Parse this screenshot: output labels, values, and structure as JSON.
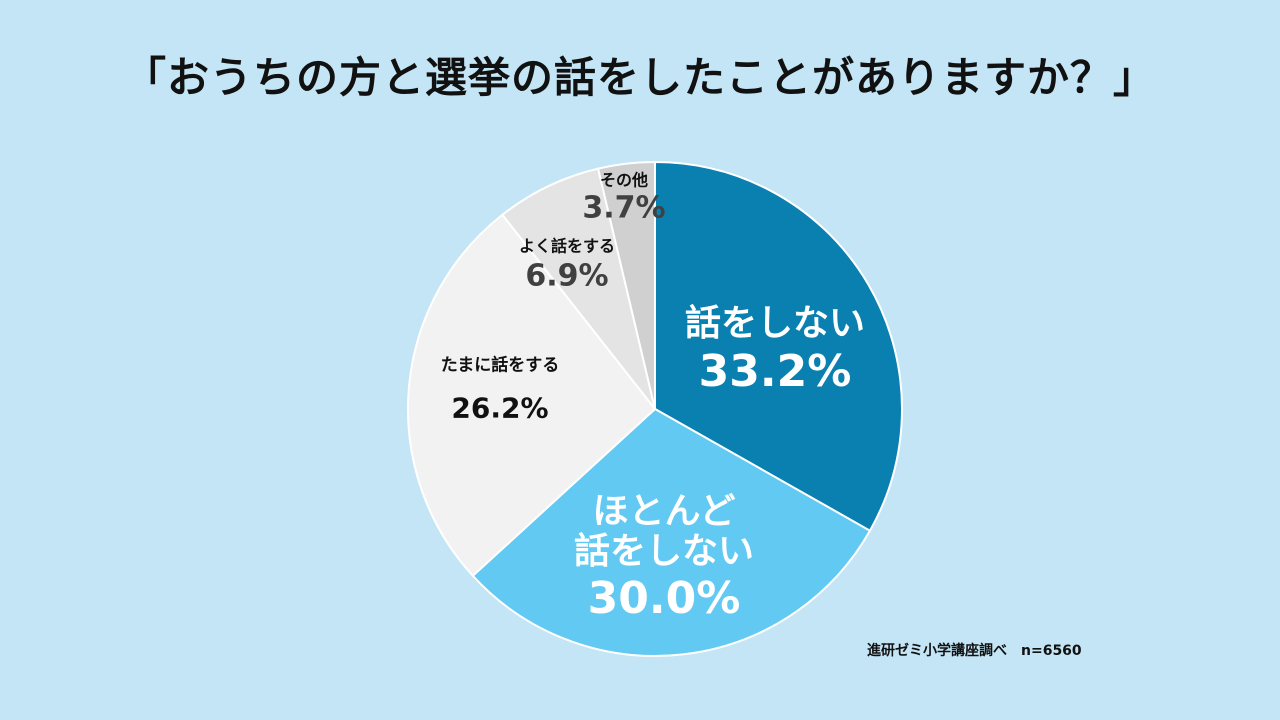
{
  "title": "「おうちの方と選挙の話をしたことがありますか？」",
  "source": "進研ゼミ小学講座調べ　n=6560",
  "chart_data": {
    "type": "pie",
    "title": "「おうちの方と選挙の話をしたことがありますか？」",
    "categories": [
      "話をしない",
      "ほとんど話をしない",
      "たまに話をする",
      "よく話をする",
      "その他"
    ],
    "labels": [
      {
        "name": "話をしない",
        "value_text": "33.2%"
      },
      {
        "name": "ほとんど\n話をしない",
        "value_text": "30.0%"
      },
      {
        "name": "たまに話をする",
        "value_text": "26.2%"
      },
      {
        "name": "よく話をする",
        "value_text": "6.9%"
      },
      {
        "name": "その他",
        "value_text": "3.7%"
      }
    ],
    "values": [
      33.2,
      30.0,
      26.2,
      6.9,
      3.7
    ],
    "colors": [
      "#0a80b0",
      "#62c9f2",
      "#f2f2f2",
      "#e4e4e4",
      "#d0d0d0"
    ],
    "start": "top",
    "direction": "clockwise"
  }
}
